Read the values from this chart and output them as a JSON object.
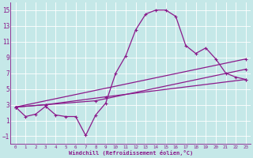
{
  "bg_color": "#c5e8e8",
  "line_color": "#8b1a8b",
  "grid_color": "#b0d8d8",
  "xlabel": "Windchill (Refroidissement éolien,°C)",
  "xlim": [
    -0.5,
    23.5
  ],
  "ylim": [
    -2.0,
    16.0
  ],
  "xticks": [
    0,
    1,
    2,
    3,
    4,
    5,
    6,
    7,
    8,
    9,
    10,
    11,
    12,
    13,
    14,
    15,
    16,
    17,
    18,
    19,
    20,
    21,
    22,
    23
  ],
  "yticks": [
    -1,
    1,
    3,
    5,
    7,
    9,
    11,
    13,
    15
  ],
  "series1_x": [
    0,
    1,
    2,
    3,
    4,
    5,
    6,
    7,
    8,
    9,
    10,
    11,
    12,
    13,
    14,
    15,
    16,
    17,
    18,
    19,
    20,
    21,
    22,
    23
  ],
  "series1_y": [
    2.7,
    1.5,
    1.8,
    2.8,
    1.7,
    1.5,
    1.5,
    -0.9,
    1.7,
    3.2,
    7.0,
    9.2,
    12.5,
    14.5,
    15.0,
    15.0,
    14.2,
    10.5,
    9.5,
    10.2,
    8.8,
    7.0,
    6.5,
    6.2
  ],
  "series2_x": [
    0,
    3,
    8,
    23
  ],
  "series2_y": [
    2.7,
    3.0,
    3.5,
    7.5
  ],
  "series3_x": [
    0,
    3,
    9,
    23
  ],
  "series3_y": [
    2.7,
    3.0,
    4.0,
    6.2
  ],
  "series4_x": [
    0,
    23
  ],
  "series4_y": [
    2.7,
    8.8
  ]
}
